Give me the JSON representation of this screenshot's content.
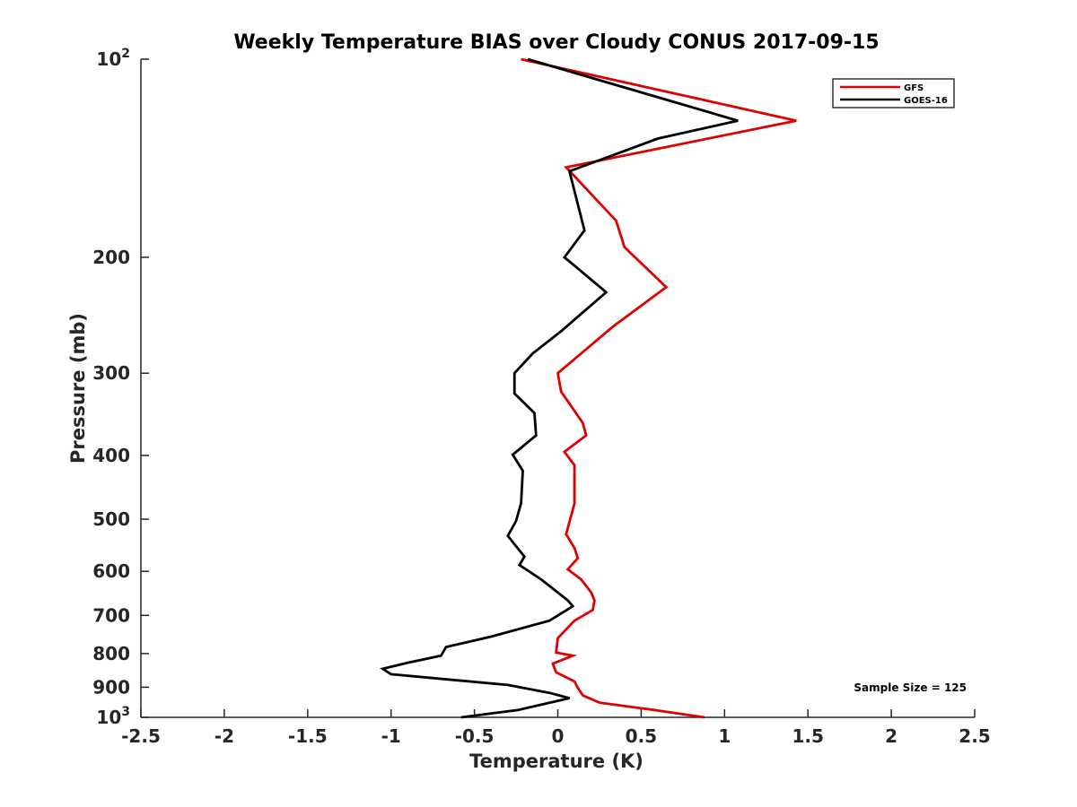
{
  "chart_data": {
    "type": "line",
    "title": "Weekly Temperature BIAS over Cloudy CONUS 2017-09-15",
    "xlabel": "Temperature (K)",
    "ylabel": "Pressure (mb)",
    "xlim": [
      -2.5,
      2.5
    ],
    "ylim": [
      100,
      1000
    ],
    "y_scale": "log",
    "y_reversed": true,
    "x_ticks": [
      "-2.5",
      "-2",
      "-1.5",
      "-1",
      "-0.5",
      "0",
      "0.5",
      "1",
      "1.5",
      "2",
      "2.5"
    ],
    "y_ticks": [
      {
        "value": 100,
        "base": "10",
        "exp": "2"
      },
      {
        "value": 200,
        "label": "200"
      },
      {
        "value": 300,
        "label": "300"
      },
      {
        "value": 400,
        "label": "400"
      },
      {
        "value": 500,
        "label": "500"
      },
      {
        "value": 600,
        "label": "600"
      },
      {
        "value": 700,
        "label": "700"
      },
      {
        "value": 800,
        "label": "800"
      },
      {
        "value": 900,
        "label": "900"
      },
      {
        "value": 1000,
        "base": "10",
        "exp": "3"
      }
    ],
    "legend_position": "top-right",
    "annotation": "Sample Size = 125",
    "series": [
      {
        "name": "GFS",
        "color": "#e00000",
        "points": [
          [
            -0.22,
            100
          ],
          [
            1.43,
            124
          ],
          [
            0.05,
            146
          ],
          [
            0.35,
            176
          ],
          [
            0.4,
            193
          ],
          [
            0.65,
            222
          ],
          [
            0.33,
            255
          ],
          [
            0.0,
            300
          ],
          [
            0.02,
            320
          ],
          [
            0.15,
            357
          ],
          [
            0.17,
            373
          ],
          [
            0.04,
            395
          ],
          [
            0.1,
            414
          ],
          [
            0.1,
            473
          ],
          [
            0.05,
            527
          ],
          [
            0.1,
            553
          ],
          [
            0.12,
            573
          ],
          [
            0.06,
            596
          ],
          [
            0.14,
            617
          ],
          [
            0.2,
            646
          ],
          [
            0.22,
            664
          ],
          [
            0.21,
            687
          ],
          [
            0.1,
            713
          ],
          [
            0.0,
            758
          ],
          [
            -0.01,
            797
          ],
          [
            0.09,
            806
          ],
          [
            -0.03,
            829
          ],
          [
            -0.01,
            854
          ],
          [
            0.1,
            882
          ],
          [
            0.12,
            902
          ],
          [
            0.15,
            926
          ],
          [
            0.25,
            950
          ],
          [
            0.58,
            975
          ],
          [
            0.88,
            1000
          ]
        ]
      },
      {
        "name": "GOES-16",
        "color": "#000000",
        "points": [
          [
            -0.18,
            100
          ],
          [
            1.08,
            124
          ],
          [
            0.6,
            132
          ],
          [
            0.07,
            148
          ],
          [
            0.16,
            182
          ],
          [
            0.04,
            200
          ],
          [
            0.29,
            226
          ],
          [
            0.02,
            259
          ],
          [
            -0.15,
            280
          ],
          [
            -0.26,
            300
          ],
          [
            -0.26,
            322
          ],
          [
            -0.14,
            345
          ],
          [
            -0.13,
            373
          ],
          [
            -0.27,
            399
          ],
          [
            -0.21,
            422
          ],
          [
            -0.22,
            473
          ],
          [
            -0.25,
            503
          ],
          [
            -0.3,
            530
          ],
          [
            -0.2,
            570
          ],
          [
            -0.23,
            587
          ],
          [
            -0.1,
            617
          ],
          [
            0.06,
            664
          ],
          [
            0.09,
            678
          ],
          [
            -0.05,
            713
          ],
          [
            -0.4,
            754
          ],
          [
            -0.67,
            782
          ],
          [
            -0.7,
            806
          ],
          [
            -0.9,
            826
          ],
          [
            -1.05,
            844
          ],
          [
            -1.0,
            860
          ],
          [
            -0.3,
            893
          ],
          [
            -0.05,
            918
          ],
          [
            0.07,
            935
          ],
          [
            -0.24,
            975
          ],
          [
            -0.58,
            1000
          ]
        ]
      }
    ]
  }
}
